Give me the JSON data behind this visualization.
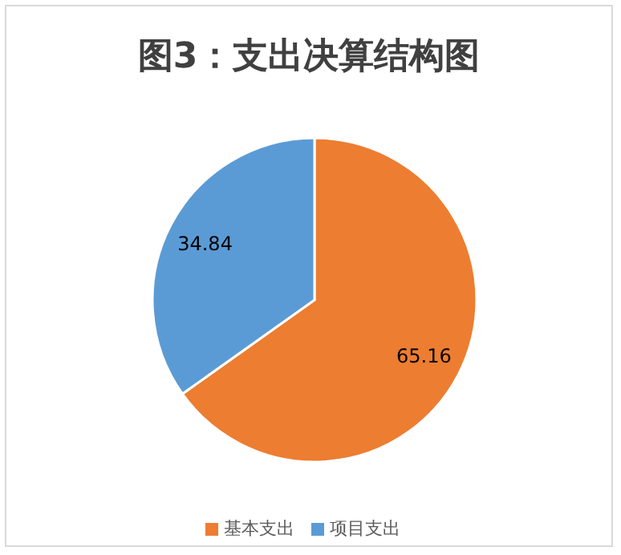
{
  "chart_data": {
    "type": "pie",
    "title": "图3：支出决算结构图",
    "categories": [
      "基本支出",
      "项目支出"
    ],
    "values": [
      65.16,
      34.84
    ],
    "colors": [
      "#ed7d31",
      "#5b9bd5"
    ],
    "data_labels": true,
    "legend": "bottom"
  }
}
